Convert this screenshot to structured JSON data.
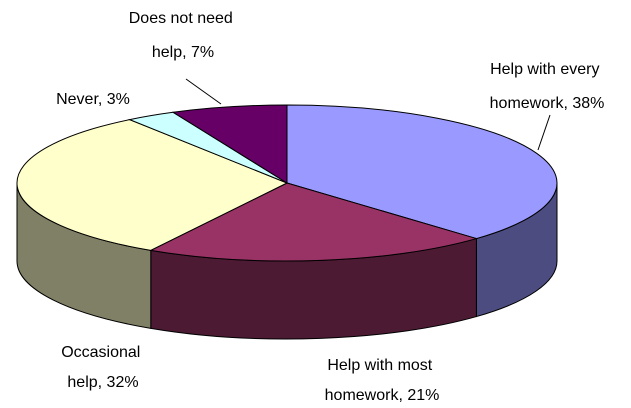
{
  "chart_data": {
    "type": "pie",
    "title": "",
    "slices": [
      {
        "label_lines": [
          "Help with every",
          "homework, 38%"
        ],
        "value": 38,
        "color": "#9999ff",
        "side_color": "#4c4c80"
      },
      {
        "label_lines": [
          "Help with most",
          "homework, 21%"
        ],
        "value": 21,
        "color": "#993366",
        "side_color": "#4c1a33"
      },
      {
        "label_lines": [
          "Occasional",
          "help, 32%"
        ],
        "value": 32,
        "color": "#ffffcc",
        "side_color": "#808066"
      },
      {
        "label_lines": [
          "Never, 3%"
        ],
        "value": 3,
        "color": "#ccffff",
        "side_color": "#668080"
      },
      {
        "label_lines": [
          "Does not need",
          "help, 7%"
        ],
        "value": 7,
        "color": "#660066",
        "side_color": "#330033"
      }
    ],
    "legend": "none",
    "style": "3d-pie"
  }
}
